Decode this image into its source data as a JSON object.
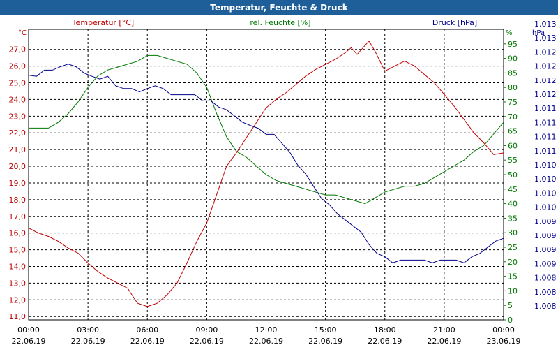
{
  "window": {
    "title": "Temperatur, Feuchte & Druck"
  },
  "colors": {
    "titlebar": "#1e5f9a",
    "temperature": "#c00000",
    "humidity": "#007800",
    "pressure": "#00008b",
    "grid": "#000000"
  },
  "chart_data": {
    "type": "line",
    "title": "Temperatur, Feuchte & Druck",
    "xlim": [
      0,
      24
    ],
    "axes": {
      "temperature": {
        "series_label": "Temperatur [°C]",
        "unit": "°C",
        "ylim": [
          10.8,
          28.2
        ],
        "ticks": [
          "11,0",
          "12,0",
          "13,0",
          "14,0",
          "15,0",
          "16,0",
          "17,0",
          "18,0",
          "19,0",
          "20,0",
          "21,0",
          "22,0",
          "23,0",
          "24,0",
          "25,0",
          "26,0",
          "27,0"
        ]
      },
      "humidity": {
        "series_label": "rel. Feuchte [%]",
        "unit": "%",
        "ylim": [
          0,
          100
        ],
        "ticks": [
          "0",
          "5",
          "10",
          "15",
          "20",
          "25",
          "30",
          "35",
          "40",
          "45",
          "50",
          "55",
          "60",
          "65",
          "70",
          "75",
          "80",
          "85",
          "90",
          "95"
        ]
      },
      "pressure": {
        "series_label": "Druck [hPa]",
        "unit": "hPa",
        "ticks": [
          "1.008",
          "1.008",
          "1.008",
          "1.009",
          "1.009",
          "1.009",
          "1.009",
          "1.010",
          "1.010",
          "1.010",
          "1.010",
          "1.011",
          "1.011",
          "1.011",
          "1.011",
          "1.012",
          "1.012",
          "1.012",
          "1.012",
          "1.013",
          "1.013"
        ]
      }
    },
    "x_ticks": [
      {
        "time": "00:00",
        "date": "22.06.19"
      },
      {
        "time": "03:00",
        "date": "22.06.19"
      },
      {
        "time": "06:00",
        "date": "22.06.19"
      },
      {
        "time": "09:00",
        "date": "22.06.19"
      },
      {
        "time": "12:00",
        "date": "22.06.19"
      },
      {
        "time": "15:00",
        "date": "22.06.19"
      },
      {
        "time": "18:00",
        "date": "22.06.19"
      },
      {
        "time": "21:00",
        "date": "22.06.19"
      },
      {
        "time": "00:00",
        "date": "23.06.19"
      }
    ],
    "series": [
      {
        "name": "Temperatur",
        "axis": "temperature",
        "color": "#c00000",
        "x": [
          0,
          0.5,
          1,
          1.5,
          2,
          2.5,
          3,
          3.5,
          4,
          4.5,
          5,
          5.5,
          6,
          6.5,
          7,
          7.5,
          8,
          8.5,
          9,
          9.5,
          10,
          10.5,
          11,
          11.5,
          12,
          12.5,
          13,
          13.5,
          14,
          14.5,
          15,
          15.5,
          16,
          16.3,
          16.6,
          16.9,
          17.2,
          17.5,
          18,
          18.5,
          19,
          19.5,
          20,
          20.5,
          21,
          21.5,
          22,
          22.5,
          23,
          23.5,
          24
        ],
        "values": [
          16.3,
          16.0,
          15.8,
          15.5,
          15.1,
          14.8,
          14.2,
          13.7,
          13.3,
          13.0,
          12.7,
          11.8,
          11.6,
          11.8,
          12.3,
          13.0,
          14.2,
          15.5,
          16.6,
          18.3,
          20.0,
          20.8,
          21.7,
          22.6,
          23.5,
          24.0,
          24.4,
          24.9,
          25.4,
          25.8,
          26.1,
          26.4,
          26.8,
          27.1,
          26.7,
          27.1,
          27.5,
          26.9,
          25.7,
          26.0,
          26.3,
          26.0,
          25.5,
          25.0,
          24.3,
          23.6,
          22.8,
          22.0,
          21.4,
          20.7,
          20.8
        ]
      },
      {
        "name": "rel. Feuchte",
        "axis": "humidity",
        "color": "#007800",
        "x": [
          0,
          0.5,
          1,
          1.5,
          2,
          2.5,
          3,
          3.5,
          4,
          4.5,
          5,
          5.5,
          6,
          6.5,
          7,
          7.5,
          8,
          8.5,
          9,
          9.5,
          10,
          10.5,
          11,
          11.5,
          12,
          12.5,
          13,
          13.5,
          14,
          14.5,
          15,
          15.5,
          16,
          16.5,
          17,
          17.5,
          18,
          18.5,
          19,
          19.5,
          20,
          20.5,
          21,
          21.5,
          22,
          22.5,
          23,
          23.5,
          24
        ],
        "values": [
          66,
          66,
          66,
          68,
          71,
          75,
          80,
          84,
          86,
          87,
          88,
          89,
          91,
          91,
          90,
          89,
          88,
          85,
          80,
          71,
          63,
          58,
          56,
          53,
          50,
          48,
          47,
          46,
          45,
          44,
          43,
          43,
          42,
          41,
          40,
          42,
          44,
          45,
          46,
          46,
          47,
          49,
          51,
          53,
          55,
          58,
          60,
          64,
          68
        ]
      },
      {
        "name": "Druck",
        "axis": "pressure",
        "color": "#00008b",
        "x": [
          0,
          0.4,
          0.8,
          1.2,
          1.6,
          2.0,
          2.4,
          2.8,
          3.2,
          3.6,
          4.0,
          4.4,
          4.8,
          5.2,
          5.6,
          6.0,
          6.4,
          6.8,
          7.2,
          7.6,
          8.0,
          8.4,
          8.8,
          9.2,
          9.6,
          10.0,
          10.4,
          10.8,
          11.2,
          11.6,
          12.0,
          12.4,
          12.8,
          13.2,
          13.6,
          14.0,
          14.4,
          14.8,
          15.2,
          15.6,
          16.0,
          16.4,
          16.8,
          17.2,
          17.6,
          18.0,
          18.4,
          18.8,
          19.2,
          19.6,
          20.0,
          20.4,
          20.8,
          21.2,
          21.6,
          22.0,
          22.4,
          22.8,
          23.2,
          23.6,
          24
        ],
        "values": [
          1012.18,
          1012.16,
          1012.27,
          1012.27,
          1012.33,
          1012.38,
          1012.33,
          1012.22,
          1012.16,
          1012.11,
          1012.16,
          1011.99,
          1011.94,
          1011.94,
          1011.88,
          1011.94,
          1011.99,
          1011.94,
          1011.83,
          1011.83,
          1011.83,
          1011.83,
          1011.72,
          1011.72,
          1011.61,
          1011.56,
          1011.45,
          1011.34,
          1011.28,
          1011.23,
          1011.12,
          1011.12,
          1010.96,
          1010.8,
          1010.57,
          1010.41,
          1010.19,
          1009.97,
          1009.86,
          1009.7,
          1009.59,
          1009.48,
          1009.37,
          1009.15,
          1008.99,
          1008.93,
          1008.82,
          1008.87,
          1008.87,
          1008.87,
          1008.87,
          1008.82,
          1008.87,
          1008.87,
          1008.87,
          1008.82,
          1008.93,
          1008.99,
          1009.1,
          1009.21,
          1009.26
        ]
      }
    ]
  }
}
